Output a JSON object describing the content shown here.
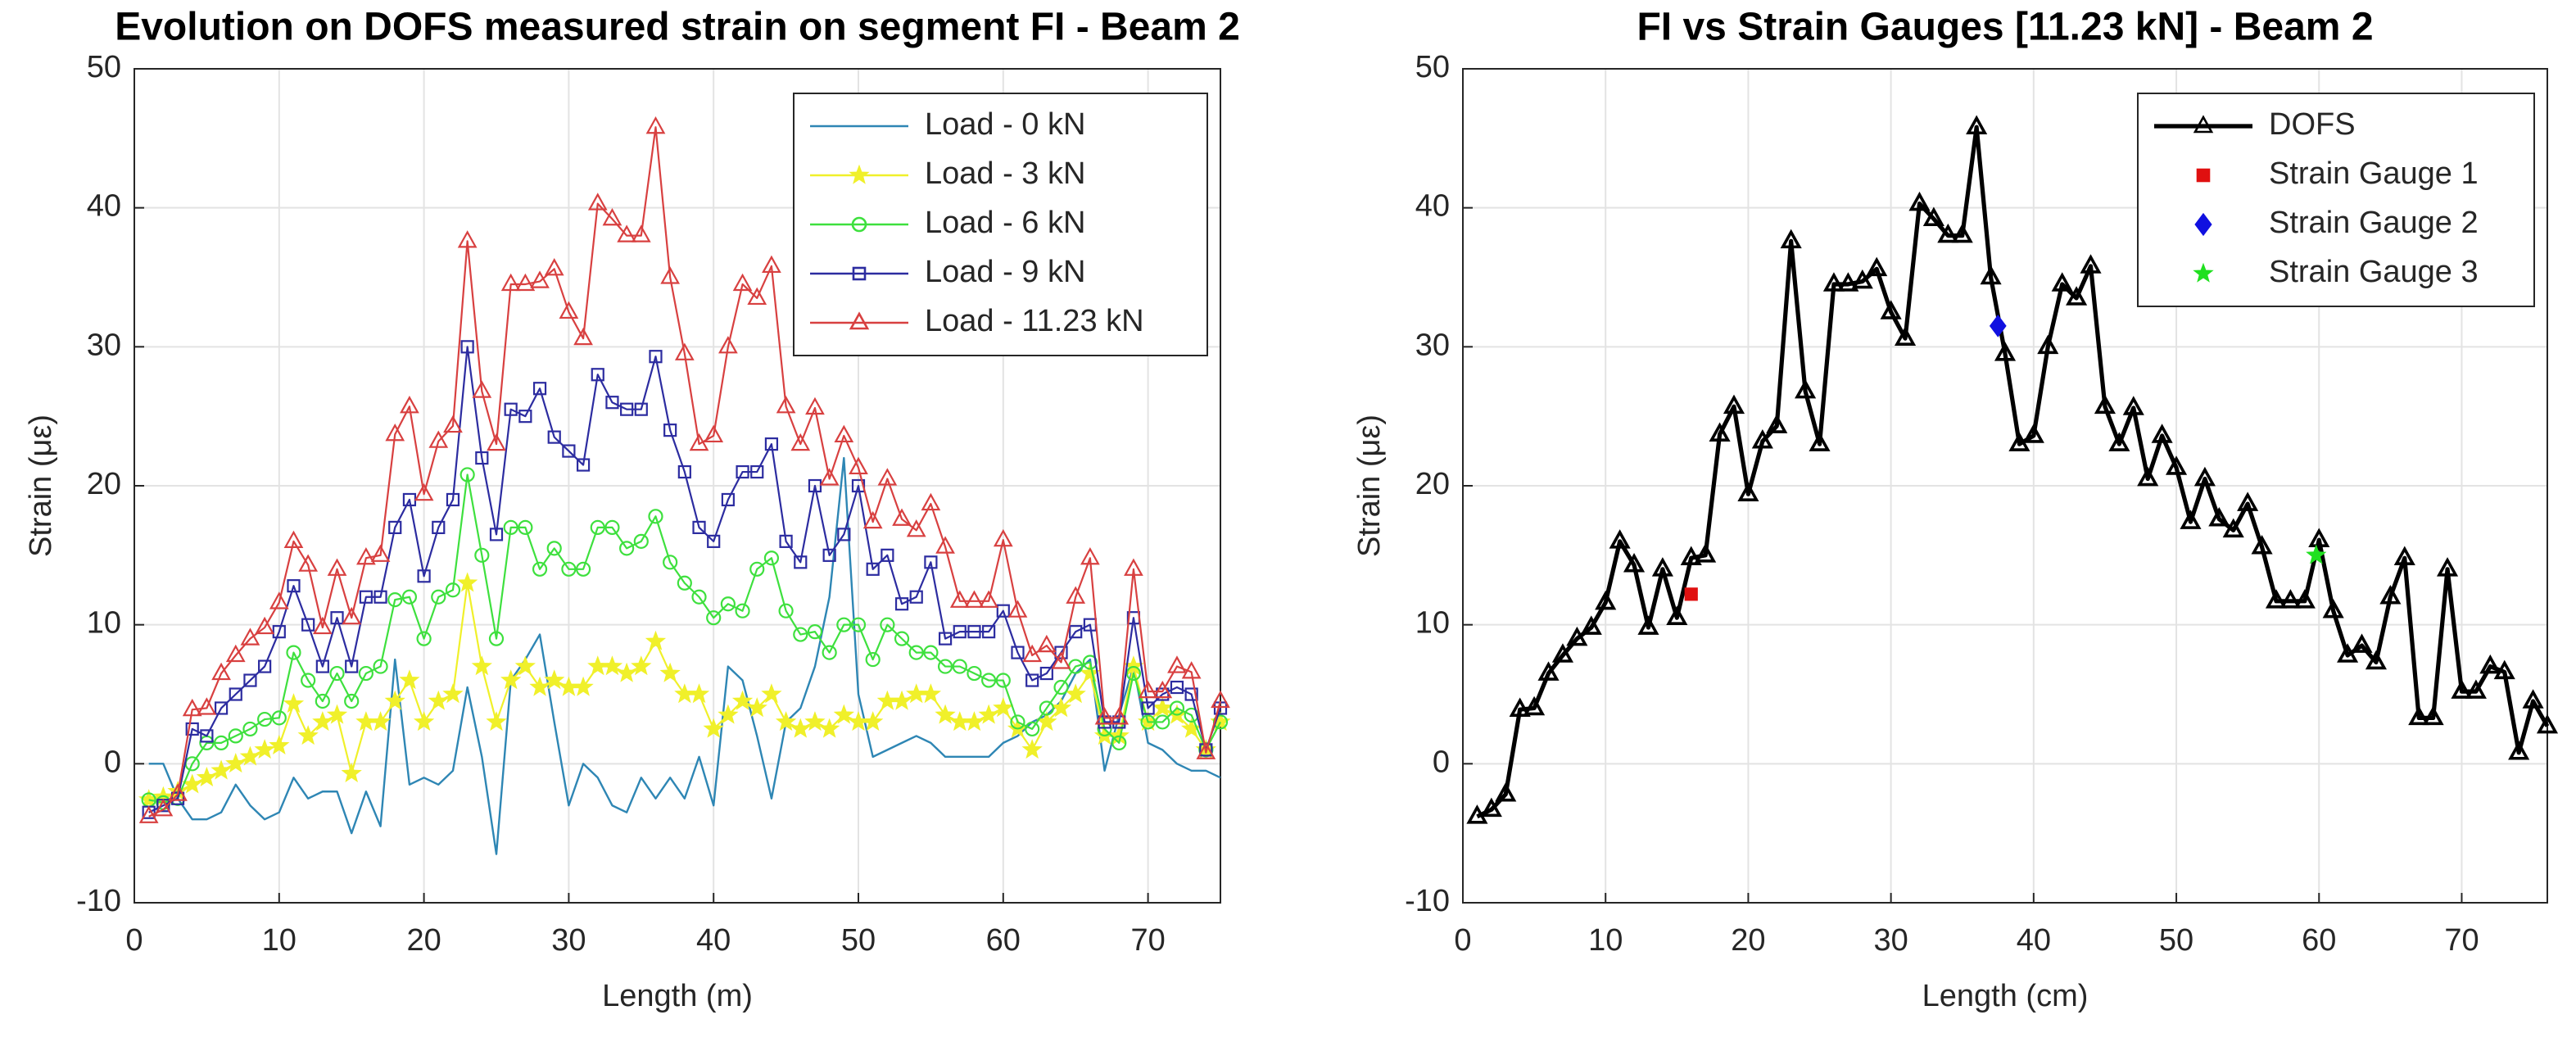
{
  "chart_data": [
    {
      "type": "line",
      "title": "Evolution on DOFS measured strain on segment FI - Beam 2",
      "xlabel": "Length (m)",
      "ylabel": "Strain (με)",
      "x": [
        1,
        2,
        3,
        4,
        5,
        6,
        7,
        8,
        9,
        10,
        11,
        12,
        13,
        14,
        15,
        16,
        17,
        18,
        19,
        20,
        21,
        22,
        23,
        24,
        25,
        26,
        27,
        28,
        29,
        30,
        31,
        32,
        33,
        34,
        35,
        36,
        37,
        38,
        39,
        40,
        41,
        42,
        43,
        44,
        45,
        46,
        47,
        48,
        49,
        50,
        51,
        52,
        53,
        54,
        55,
        56,
        57,
        58,
        59,
        60,
        61,
        62,
        63,
        64,
        65,
        66,
        67,
        68,
        69,
        70,
        71,
        72,
        73,
        74,
        75
      ],
      "xlim": [
        0,
        75
      ],
      "ylim": [
        -10,
        50
      ],
      "xticks": [
        0,
        10,
        20,
        30,
        40,
        50,
        60,
        70
      ],
      "yticks": [
        -10,
        0,
        10,
        20,
        30,
        40,
        50
      ],
      "grid": true,
      "legend": "upper right",
      "series": [
        {
          "name": "Load - 0 kN",
          "color": "#2e86b4",
          "marker": "none",
          "values": [
            0,
            0,
            -2.5,
            -4,
            -4,
            -3.5,
            -1.5,
            -3,
            -4,
            -3.5,
            -1,
            -2.5,
            -2,
            -2,
            -5,
            -2,
            -4.5,
            7.5,
            -1.5,
            -1,
            -1.5,
            -0.5,
            5.5,
            0.5,
            -6.5,
            6,
            7.5,
            9.3,
            3,
            -3,
            0,
            -1,
            -3,
            -3.5,
            -1,
            -2.5,
            -1,
            -2.5,
            0.5,
            -3,
            7,
            6,
            2,
            -2.5,
            3,
            4,
            7,
            12,
            22,
            5,
            0.5,
            1,
            1.5,
            2,
            1.5,
            0.5,
            0.5,
            0.5,
            0.5,
            1.5,
            2,
            3,
            3.5,
            4.5,
            6.5,
            7.5,
            -0.5,
            3.5,
            7,
            1.5,
            1,
            0,
            -0.5,
            -0.5,
            -1
          ]
        },
        {
          "name": "Load - 3 kN",
          "color": "#f0f02a",
          "marker": "star",
          "values": [
            -2.6,
            -2.4,
            -2,
            -1.5,
            -1,
            -0.5,
            0,
            0.5,
            1,
            1.3,
            4.3,
            2,
            3,
            3.5,
            -0.7,
            3,
            3,
            4.5,
            6,
            3,
            4.5,
            5,
            13,
            7,
            3,
            6,
            7,
            5.5,
            6,
            5.5,
            5.5,
            7,
            7,
            6.5,
            7,
            8.8,
            6.5,
            5,
            5,
            2.5,
            3.5,
            4.5,
            4,
            5,
            3,
            2.5,
            3,
            2.5,
            3.5,
            3,
            3,
            4.5,
            4.5,
            5,
            5,
            3.5,
            3,
            3,
            3.5,
            4,
            2.5,
            1,
            3,
            4,
            5,
            6.5,
            2,
            2,
            7,
            3,
            4,
            3.5,
            2.5,
            1,
            3
          ]
        },
        {
          "name": "Load - 6 kN",
          "color": "#3ee03e",
          "marker": "circle",
          "values": [
            -2.6,
            -2.8,
            -2.5,
            0,
            1.5,
            1.5,
            2,
            2.5,
            3.2,
            3.3,
            8,
            6,
            4.5,
            6.5,
            4.5,
            6.5,
            7,
            11.8,
            12,
            9,
            12,
            12.5,
            20.8,
            15,
            9,
            17,
            17,
            14,
            15.5,
            14,
            14,
            17,
            17,
            15.5,
            16,
            17.8,
            14.5,
            13,
            12,
            10.5,
            11.5,
            11,
            14,
            14.8,
            11,
            9.3,
            9.5,
            8,
            10,
            10,
            7.5,
            10,
            9,
            8,
            8,
            7,
            7,
            6.5,
            6,
            6,
            3,
            2.5,
            4,
            5.5,
            7,
            7.3,
            2.5,
            1.5,
            6.5,
            3,
            3,
            4,
            3.5,
            1,
            3
          ]
        },
        {
          "name": "Load - 9 kN",
          "color": "#2c2ca0",
          "marker": "square",
          "values": [
            -3.5,
            -3,
            -2.5,
            2.5,
            2,
            4,
            5,
            6,
            7,
            9.5,
            12.8,
            10,
            7,
            10.5,
            7,
            12,
            12,
            17,
            19,
            13.5,
            17,
            19,
            30,
            22,
            16.5,
            25.5,
            25,
            27,
            23.5,
            22.5,
            21.5,
            28,
            26,
            25.5,
            25.5,
            29.3,
            24,
            21,
            17,
            16,
            19,
            21,
            21,
            23,
            16,
            14.5,
            20,
            15,
            16.5,
            20,
            14,
            15,
            11.5,
            12,
            14.5,
            9,
            9.5,
            9.5,
            9.5,
            11,
            8,
            6,
            6.5,
            8,
            9.5,
            10,
            3,
            3,
            10.5,
            4,
            5,
            5.5,
            5,
            1,
            4
          ]
        },
        {
          "name": "Load - 11.23 kN",
          "color": "#d84040",
          "marker": "triangle",
          "values": [
            -3.8,
            -3.3,
            -2.2,
            3.9,
            4,
            6.5,
            7.8,
            9,
            9.8,
            11.6,
            16,
            14.3,
            9.8,
            14,
            10.5,
            14.8,
            15,
            23.7,
            25.7,
            19.4,
            23.2,
            24.3,
            37.6,
            26.8,
            23,
            34.5,
            34.5,
            34.7,
            35.6,
            32.5,
            30.6,
            40.3,
            39.2,
            38,
            38,
            45.8,
            35,
            29.5,
            23,
            23.6,
            30,
            34.5,
            33.5,
            35.8,
            25.7,
            23,
            25.6,
            20.5,
            23.6,
            21.3,
            17.4,
            20.5,
            17.6,
            16.8,
            18.7,
            15.6,
            11.7,
            11.7,
            11.7,
            16.1,
            11,
            7.8,
            8.5,
            7.3,
            12,
            14.8,
            3.3,
            3.3,
            14,
            5.2,
            5.2,
            7,
            6.6,
            0.8,
            4.5
          ]
        }
      ]
    },
    {
      "type": "line",
      "title": "FI vs Strain Gauges [11.23 kN] - Beam 2",
      "xlabel": "Length (cm)",
      "ylabel": "Strain (με)",
      "xlim": [
        0,
        76
      ],
      "ylim": [
        -10,
        50
      ],
      "xticks": [
        0,
        10,
        20,
        30,
        40,
        50,
        60,
        70
      ],
      "yticks": [
        -10,
        0,
        10,
        20,
        30,
        40,
        50
      ],
      "grid": true,
      "legend": "upper right",
      "series": [
        {
          "name": "DOFS",
          "color": "#000000",
          "marker": "triangle",
          "x": [
            1,
            2,
            3,
            4,
            5,
            6,
            7,
            8,
            9,
            10,
            11,
            12,
            13,
            14,
            15,
            16,
            17,
            18,
            19,
            20,
            21,
            22,
            23,
            24,
            25,
            26,
            27,
            28,
            29,
            30,
            31,
            32,
            33,
            34,
            35,
            36,
            37,
            38,
            39,
            40,
            41,
            42,
            43,
            44,
            45,
            46,
            47,
            48,
            49,
            50,
            51,
            52,
            53,
            54,
            55,
            56,
            57,
            58,
            59,
            60,
            61,
            62,
            63,
            64,
            65,
            66,
            67,
            68,
            69,
            70,
            71,
            72,
            73,
            74,
            75,
            76
          ],
          "values": [
            -3.8,
            -3.3,
            -2.2,
            3.9,
            4,
            6.5,
            7.8,
            9,
            9.8,
            11.6,
            16,
            14.3,
            9.8,
            14,
            10.5,
            14.8,
            15,
            23.7,
            25.7,
            19.4,
            23.2,
            24.3,
            37.6,
            26.8,
            23,
            34.5,
            34.5,
            34.7,
            35.6,
            32.5,
            30.6,
            40.3,
            39.2,
            38,
            38,
            45.8,
            35,
            29.5,
            23,
            23.6,
            30,
            34.5,
            33.5,
            35.8,
            25.7,
            23,
            25.6,
            20.5,
            23.6,
            21.3,
            17.4,
            20.5,
            17.6,
            16.8,
            18.7,
            15.6,
            11.7,
            11.7,
            11.7,
            16.1,
            11,
            7.8,
            8.5,
            7.3,
            12,
            14.8,
            3.3,
            3.3,
            14,
            5.2,
            5.2,
            7,
            6.6,
            0.8,
            4.5,
            2.7
          ]
        },
        {
          "name": "Strain Gauge 1",
          "color": "#e01010",
          "marker": "square",
          "line": false,
          "x": [
            16
          ],
          "values": [
            12.2
          ]
        },
        {
          "name": "Strain Gauge 2",
          "color": "#1010e0",
          "marker": "diamond",
          "line": false,
          "x": [
            37.5
          ],
          "values": [
            31.5
          ]
        },
        {
          "name": "Strain Gauge 3",
          "color": "#20e020",
          "marker": "star",
          "line": false,
          "x": [
            59.8
          ],
          "values": [
            15
          ]
        }
      ]
    }
  ]
}
